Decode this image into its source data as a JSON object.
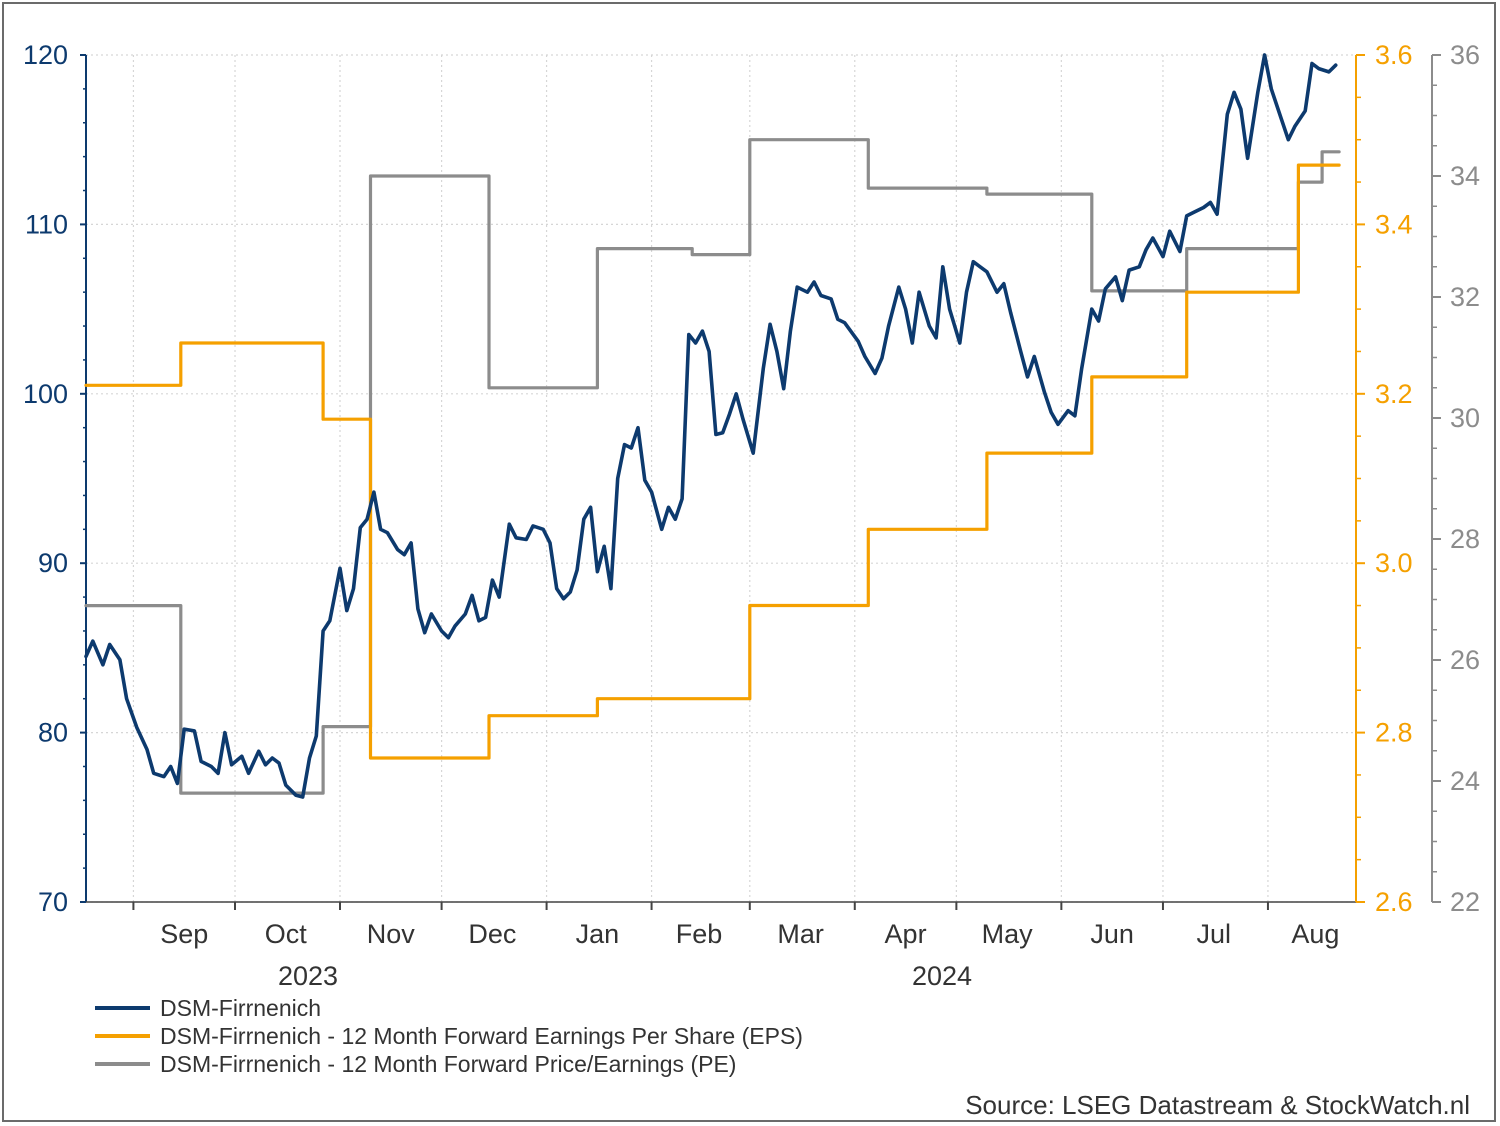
{
  "chart_data": {
    "type": "line",
    "source": "Source: LSEG Datastream & StockWatch.nl",
    "x_axis": {
      "months": [
        "Sep",
        "Oct",
        "Nov",
        "Dec",
        "Jan",
        "Feb",
        "Mar",
        "Apr",
        "May",
        "Jun",
        "Jul",
        "Aug"
      ],
      "years": [
        "2023",
        "2024"
      ],
      "range": [
        "2023-08-18",
        "2024-08-27"
      ]
    },
    "y_axes": {
      "left": {
        "min": 70,
        "max": 120,
        "ticks": [
          "70",
          "80",
          "90",
          "100",
          "110",
          "120"
        ],
        "color": "#0d3a6e"
      },
      "right_eps": {
        "min": 2.6,
        "max": 3.6,
        "ticks": [
          "2.6",
          "2.8",
          "3.0",
          "3.2",
          "3.4",
          "3.6"
        ],
        "color": "#f5a000"
      },
      "right_pe": {
        "min": 22,
        "max": 36,
        "ticks": [
          "22",
          "24",
          "26",
          "28",
          "30",
          "32",
          "34",
          "36"
        ],
        "color": "#8c8c8c"
      }
    },
    "grid": true,
    "legend_position": "bottom-left",
    "series": [
      {
        "name": "DSM-Firrnenich",
        "axis": "left",
        "color": "#0d3a6e",
        "points": [
          [
            "2023-08-18",
            84.5
          ],
          [
            "2023-08-20",
            85.4
          ],
          [
            "2023-08-23",
            84.0
          ],
          [
            "2023-08-25",
            85.2
          ],
          [
            "2023-08-28",
            84.3
          ],
          [
            "2023-08-30",
            82.0
          ],
          [
            "2023-09-02",
            80.3
          ],
          [
            "2023-09-05",
            79.0
          ],
          [
            "2023-09-07",
            77.6
          ],
          [
            "2023-09-10",
            77.4
          ],
          [
            "2023-09-12",
            78.0
          ],
          [
            "2023-09-14",
            77.0
          ],
          [
            "2023-09-16",
            80.2
          ],
          [
            "2023-09-19",
            80.1
          ],
          [
            "2023-09-21",
            78.3
          ],
          [
            "2023-09-24",
            78.0
          ],
          [
            "2023-09-26",
            77.6
          ],
          [
            "2023-09-28",
            80.0
          ],
          [
            "2023-09-30",
            78.1
          ],
          [
            "2023-10-03",
            78.6
          ],
          [
            "2023-10-05",
            77.6
          ],
          [
            "2023-10-08",
            78.9
          ],
          [
            "2023-10-10",
            78.1
          ],
          [
            "2023-10-12",
            78.5
          ],
          [
            "2023-10-14",
            78.2
          ],
          [
            "2023-10-16",
            76.9
          ],
          [
            "2023-10-19",
            76.3
          ],
          [
            "2023-10-21",
            76.2
          ],
          [
            "2023-10-23",
            78.5
          ],
          [
            "2023-10-25",
            79.8
          ],
          [
            "2023-10-27",
            86.0
          ],
          [
            "2023-10-29",
            86.6
          ],
          [
            "2023-11-01",
            89.7
          ],
          [
            "2023-11-03",
            87.2
          ],
          [
            "2023-11-05",
            88.5
          ],
          [
            "2023-11-07",
            92.1
          ],
          [
            "2023-11-09",
            92.6
          ],
          [
            "2023-11-11",
            94.2
          ],
          [
            "2023-11-13",
            92.0
          ],
          [
            "2023-11-15",
            91.8
          ],
          [
            "2023-11-18",
            90.8
          ],
          [
            "2023-11-20",
            90.5
          ],
          [
            "2023-11-22",
            91.2
          ],
          [
            "2023-11-24",
            87.3
          ],
          [
            "2023-11-26",
            85.9
          ],
          [
            "2023-11-28",
            87.0
          ],
          [
            "2023-12-01",
            86.0
          ],
          [
            "2023-12-03",
            85.6
          ],
          [
            "2023-12-05",
            86.3
          ],
          [
            "2023-12-08",
            87.0
          ],
          [
            "2023-12-10",
            88.1
          ],
          [
            "2023-12-12",
            86.6
          ],
          [
            "2023-12-14",
            86.8
          ],
          [
            "2023-12-16",
            89.0
          ],
          [
            "2023-12-18",
            88.0
          ],
          [
            "2023-12-21",
            92.3
          ],
          [
            "2023-12-23",
            91.5
          ],
          [
            "2023-12-26",
            91.4
          ],
          [
            "2023-12-28",
            92.2
          ],
          [
            "2023-12-31",
            92.0
          ],
          [
            "2024-01-02",
            91.2
          ],
          [
            "2024-01-04",
            88.5
          ],
          [
            "2024-01-06",
            87.9
          ],
          [
            "2024-01-08",
            88.3
          ],
          [
            "2024-01-10",
            89.6
          ],
          [
            "2024-01-12",
            92.6
          ],
          [
            "2024-01-14",
            93.3
          ],
          [
            "2024-01-16",
            89.5
          ],
          [
            "2024-01-18",
            91.0
          ],
          [
            "2024-01-20",
            88.5
          ],
          [
            "2024-01-22",
            95.0
          ],
          [
            "2024-01-24",
            97.0
          ],
          [
            "2024-01-26",
            96.8
          ],
          [
            "2024-01-28",
            98.0
          ],
          [
            "2024-01-30",
            94.9
          ],
          [
            "2024-02-01",
            94.2
          ],
          [
            "2024-02-04",
            92.0
          ],
          [
            "2024-02-06",
            93.3
          ],
          [
            "2024-02-08",
            92.6
          ],
          [
            "2024-02-10",
            93.8
          ],
          [
            "2024-02-12",
            103.5
          ],
          [
            "2024-02-14",
            103.0
          ],
          [
            "2024-02-16",
            103.7
          ],
          [
            "2024-02-18",
            102.5
          ],
          [
            "2024-02-20",
            97.6
          ],
          [
            "2024-02-22",
            97.7
          ],
          [
            "2024-02-24",
            98.8
          ],
          [
            "2024-02-26",
            100.0
          ],
          [
            "2024-02-28",
            98.5
          ],
          [
            "2024-03-02",
            96.5
          ],
          [
            "2024-03-05",
            101.5
          ],
          [
            "2024-03-07",
            104.1
          ],
          [
            "2024-03-09",
            102.5
          ],
          [
            "2024-03-11",
            100.3
          ],
          [
            "2024-03-13",
            103.7
          ],
          [
            "2024-03-15",
            106.3
          ],
          [
            "2024-03-18",
            106.0
          ],
          [
            "2024-03-20",
            106.6
          ],
          [
            "2024-03-22",
            105.8
          ],
          [
            "2024-03-25",
            105.6
          ],
          [
            "2024-03-27",
            104.4
          ],
          [
            "2024-03-29",
            104.2
          ],
          [
            "2024-04-02",
            103.1
          ],
          [
            "2024-04-04",
            102.2
          ],
          [
            "2024-04-07",
            101.2
          ],
          [
            "2024-04-09",
            102.1
          ],
          [
            "2024-04-11",
            104.0
          ],
          [
            "2024-04-14",
            106.3
          ],
          [
            "2024-04-16",
            105.0
          ],
          [
            "2024-04-18",
            103.0
          ],
          [
            "2024-04-20",
            106.0
          ],
          [
            "2024-04-23",
            104.0
          ],
          [
            "2024-04-25",
            103.3
          ],
          [
            "2024-04-27",
            107.5
          ],
          [
            "2024-04-29",
            105.0
          ],
          [
            "2024-05-02",
            103.0
          ],
          [
            "2024-05-04",
            106.0
          ],
          [
            "2024-05-06",
            107.8
          ],
          [
            "2024-05-08",
            107.5
          ],
          [
            "2024-05-10",
            107.2
          ],
          [
            "2024-05-13",
            106.0
          ],
          [
            "2024-05-15",
            106.5
          ],
          [
            "2024-05-17",
            104.8
          ],
          [
            "2024-05-20",
            102.5
          ],
          [
            "2024-05-22",
            101.0
          ],
          [
            "2024-05-24",
            102.2
          ],
          [
            "2024-05-27",
            100.1
          ],
          [
            "2024-05-29",
            98.9
          ],
          [
            "2024-05-31",
            98.2
          ],
          [
            "2024-06-03",
            99.0
          ],
          [
            "2024-06-05",
            98.7
          ],
          [
            "2024-06-07",
            101.5
          ],
          [
            "2024-06-10",
            105.0
          ],
          [
            "2024-06-12",
            104.3
          ],
          [
            "2024-06-14",
            106.2
          ],
          [
            "2024-06-17",
            106.9
          ],
          [
            "2024-06-19",
            105.5
          ],
          [
            "2024-06-21",
            107.3
          ],
          [
            "2024-06-24",
            107.5
          ],
          [
            "2024-06-26",
            108.5
          ],
          [
            "2024-06-28",
            109.2
          ],
          [
            "2024-07-01",
            108.1
          ],
          [
            "2024-07-03",
            109.6
          ],
          [
            "2024-07-06",
            108.4
          ],
          [
            "2024-07-08",
            110.5
          ],
          [
            "2024-07-10",
            110.7
          ],
          [
            "2024-07-13",
            111.0
          ],
          [
            "2024-07-15",
            111.3
          ],
          [
            "2024-07-17",
            110.6
          ],
          [
            "2024-07-20",
            116.5
          ],
          [
            "2024-07-22",
            117.8
          ],
          [
            "2024-07-24",
            116.8
          ],
          [
            "2024-07-26",
            113.9
          ],
          [
            "2024-07-29",
            117.8
          ],
          [
            "2024-07-31",
            120.0
          ],
          [
            "2024-08-02",
            118.0
          ],
          [
            "2024-08-05",
            116.2
          ],
          [
            "2024-08-07",
            115.0
          ],
          [
            "2024-08-09",
            115.8
          ],
          [
            "2024-08-12",
            116.7
          ],
          [
            "2024-08-14",
            119.5
          ],
          [
            "2024-08-16",
            119.2
          ],
          [
            "2024-08-19",
            119.0
          ],
          [
            "2024-08-21",
            119.4
          ]
        ]
      },
      {
        "name": "DSM-Firrnenich - 12 Month Forward Earnings Per Share (EPS)",
        "axis": "right_eps",
        "color": "#f5a000",
        "points": [
          [
            "2023-08-18",
            3.21
          ],
          [
            "2023-09-15",
            3.21
          ],
          [
            "2023-09-15",
            3.26
          ],
          [
            "2023-10-27",
            3.26
          ],
          [
            "2023-10-27",
            3.17
          ],
          [
            "2023-11-10",
            3.17
          ],
          [
            "2023-11-10",
            2.77
          ],
          [
            "2023-12-15",
            2.77
          ],
          [
            "2023-12-15",
            2.82
          ],
          [
            "2024-01-16",
            2.82
          ],
          [
            "2024-01-16",
            2.84
          ],
          [
            "2024-03-01",
            2.84
          ],
          [
            "2024-03-01",
            2.95
          ],
          [
            "2024-04-05",
            2.95
          ],
          [
            "2024-04-05",
            3.04
          ],
          [
            "2024-05-10",
            3.04
          ],
          [
            "2024-05-10",
            3.13
          ],
          [
            "2024-06-10",
            3.13
          ],
          [
            "2024-06-10",
            3.22
          ],
          [
            "2024-07-08",
            3.22
          ],
          [
            "2024-07-08",
            3.32
          ],
          [
            "2024-08-10",
            3.32
          ],
          [
            "2024-08-10",
            3.47
          ],
          [
            "2024-08-22",
            3.47
          ]
        ]
      },
      {
        "name": "DSM-Firrnenich - 12 Month Forward Price/Earnings (PE)",
        "axis": "right_pe",
        "color": "#8c8c8c",
        "points": [
          [
            "2023-08-18",
            26.9
          ],
          [
            "2023-09-15",
            26.9
          ],
          [
            "2023-09-15",
            23.8
          ],
          [
            "2023-10-27",
            23.8
          ],
          [
            "2023-10-27",
            24.9
          ],
          [
            "2023-11-10",
            24.9
          ],
          [
            "2023-11-10",
            34.0
          ],
          [
            "2023-12-15",
            34.0
          ],
          [
            "2023-12-15",
            30.5
          ],
          [
            "2024-01-16",
            30.5
          ],
          [
            "2024-01-16",
            32.8
          ],
          [
            "2024-02-13",
            32.8
          ],
          [
            "2024-02-13",
            32.7
          ],
          [
            "2024-03-01",
            32.7
          ],
          [
            "2024-03-01",
            34.6
          ],
          [
            "2024-04-05",
            34.6
          ],
          [
            "2024-04-05",
            33.8
          ],
          [
            "2024-05-10",
            33.8
          ],
          [
            "2024-05-10",
            33.7
          ],
          [
            "2024-06-10",
            33.7
          ],
          [
            "2024-06-10",
            32.1
          ],
          [
            "2024-07-08",
            32.1
          ],
          [
            "2024-07-08",
            32.8
          ],
          [
            "2024-08-10",
            32.8
          ],
          [
            "2024-08-10",
            33.9
          ],
          [
            "2024-08-17",
            33.9
          ],
          [
            "2024-08-17",
            34.4
          ],
          [
            "2024-08-22",
            34.4
          ]
        ]
      }
    ]
  }
}
